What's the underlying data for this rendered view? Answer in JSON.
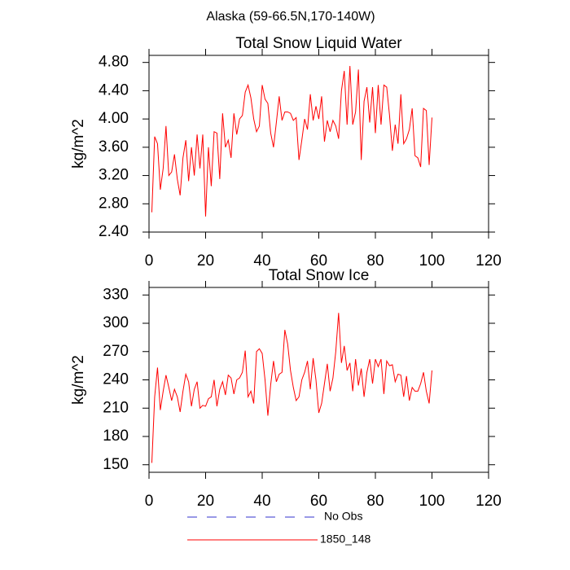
{
  "title": "Alaska (59-66.5N,170-140W)",
  "legend": [
    {
      "name": "No Obs",
      "color": "#3333cc",
      "dashed": true
    },
    {
      "name": "1850_148",
      "color": "#ff0000",
      "dashed": false
    }
  ],
  "chart_data": [
    {
      "type": "line",
      "title": "Total Snow Liquid Water",
      "y_label": "kg/m^2",
      "x": [
        1,
        2,
        3,
        4,
        5,
        6,
        7,
        8,
        9,
        10,
        11,
        12,
        13,
        14,
        15,
        16,
        17,
        18,
        19,
        20,
        21,
        22,
        23,
        24,
        25,
        26,
        27,
        28,
        29,
        30,
        31,
        32,
        33,
        34,
        35,
        36,
        37,
        38,
        39,
        40,
        41,
        42,
        43,
        44,
        45,
        46,
        47,
        48,
        49,
        50,
        51,
        52,
        53,
        54,
        55,
        56,
        57,
        58,
        59,
        60,
        61,
        62,
        63,
        64,
        65,
        66,
        67,
        68,
        69,
        70,
        71,
        72,
        73,
        74,
        75,
        76,
        77,
        78,
        79,
        80,
        81,
        82,
        83,
        84,
        85,
        86,
        87,
        88,
        89,
        90,
        91,
        92,
        93,
        94,
        95,
        96,
        97,
        98,
        99,
        100
      ],
      "series": [
        {
          "color": "#ff0000",
          "values": [
            2.68,
            3.75,
            3.65,
            3.0,
            3.3,
            3.9,
            3.2,
            3.25,
            3.5,
            3.15,
            2.92,
            3.45,
            3.7,
            3.12,
            3.6,
            3.2,
            3.78,
            3.3,
            3.78,
            2.62,
            3.6,
            3.05,
            3.82,
            3.8,
            3.15,
            4.08,
            3.6,
            3.7,
            3.45,
            4.08,
            3.78,
            4.0,
            4.05,
            4.38,
            4.48,
            4.3,
            4.0,
            3.82,
            3.9,
            4.48,
            4.28,
            4.22,
            3.8,
            3.6,
            3.95,
            4.32,
            3.98,
            4.1,
            4.1,
            4.08,
            3.98,
            4.02,
            3.42,
            3.7,
            4.0,
            3.85,
            4.35,
            3.98,
            4.18,
            4.0,
            4.32,
            3.68,
            3.98,
            3.82,
            3.98,
            3.9,
            3.72,
            4.4,
            4.68,
            3.92,
            4.75,
            3.92,
            4.1,
            4.7,
            3.42,
            4.25,
            4.45,
            3.95,
            4.45,
            3.8,
            4.48,
            3.92,
            4.48,
            4.45,
            4.05,
            3.55,
            3.92,
            3.65,
            4.35,
            3.65,
            3.72,
            3.85,
            4.15,
            3.48,
            3.45,
            3.32,
            4.15,
            4.12,
            3.35,
            4.02
          ]
        }
      ],
      "xlim": [
        0,
        120
      ],
      "xticks": [
        0,
        20,
        40,
        60,
        80,
        100,
        120
      ],
      "ylim": [
        2.4,
        4.9
      ],
      "yticks": [
        {
          "value": 2.4,
          "label": "2.40"
        },
        {
          "value": 2.8,
          "label": "2.80"
        },
        {
          "value": 3.2,
          "label": "3.20"
        },
        {
          "value": 3.6,
          "label": "3.60"
        },
        {
          "value": 4.0,
          "label": "4.00"
        },
        {
          "value": 4.4,
          "label": "4.40"
        },
        {
          "value": 4.8,
          "label": "4.80"
        }
      ]
    },
    {
      "type": "line",
      "title": "Total Snow Ice",
      "y_label": "kg/m^2",
      "x": [
        1,
        2,
        3,
        4,
        5,
        6,
        7,
        8,
        9,
        10,
        11,
        12,
        13,
        14,
        15,
        16,
        17,
        18,
        19,
        20,
        21,
        22,
        23,
        24,
        25,
        26,
        27,
        28,
        29,
        30,
        31,
        32,
        33,
        34,
        35,
        36,
        37,
        38,
        39,
        40,
        41,
        42,
        43,
        44,
        45,
        46,
        47,
        48,
        49,
        50,
        51,
        52,
        53,
        54,
        55,
        56,
        57,
        58,
        59,
        60,
        61,
        62,
        63,
        64,
        65,
        66,
        67,
        68,
        69,
        70,
        71,
        72,
        73,
        74,
        75,
        76,
        77,
        78,
        79,
        80,
        81,
        82,
        83,
        84,
        85,
        86,
        87,
        88,
        89,
        90,
        91,
        92,
        93,
        94,
        95,
        96,
        97,
        98,
        99,
        100
      ],
      "series": [
        {
          "color": "#ff0000",
          "values": [
            152,
            222,
            253,
            208,
            228,
            245,
            232,
            218,
            230,
            222,
            206,
            228,
            246,
            238,
            212,
            230,
            238,
            210,
            213,
            212,
            220,
            222,
            240,
            212,
            230,
            238,
            224,
            245,
            242,
            225,
            240,
            242,
            248,
            271,
            222,
            228,
            215,
            270,
            273,
            268,
            240,
            202,
            235,
            260,
            238,
            246,
            248,
            293,
            278,
            250,
            232,
            218,
            222,
            240,
            248,
            260,
            230,
            263,
            240,
            205,
            215,
            236,
            257,
            228,
            242,
            270,
            311,
            258,
            276,
            250,
            258,
            228,
            262,
            234,
            252,
            222,
            248,
            262,
            236,
            262,
            254,
            262,
            225,
            260,
            255,
            256,
            238,
            246,
            245,
            222,
            244,
            218,
            232,
            228,
            228,
            236,
            248,
            228,
            215,
            250
          ]
        }
      ],
      "xlim": [
        0,
        120
      ],
      "xticks": [
        0,
        20,
        40,
        60,
        80,
        100,
        120
      ],
      "ylim": [
        142,
        338
      ],
      "yticks": [
        150,
        180,
        210,
        240,
        270,
        300,
        330
      ]
    }
  ]
}
